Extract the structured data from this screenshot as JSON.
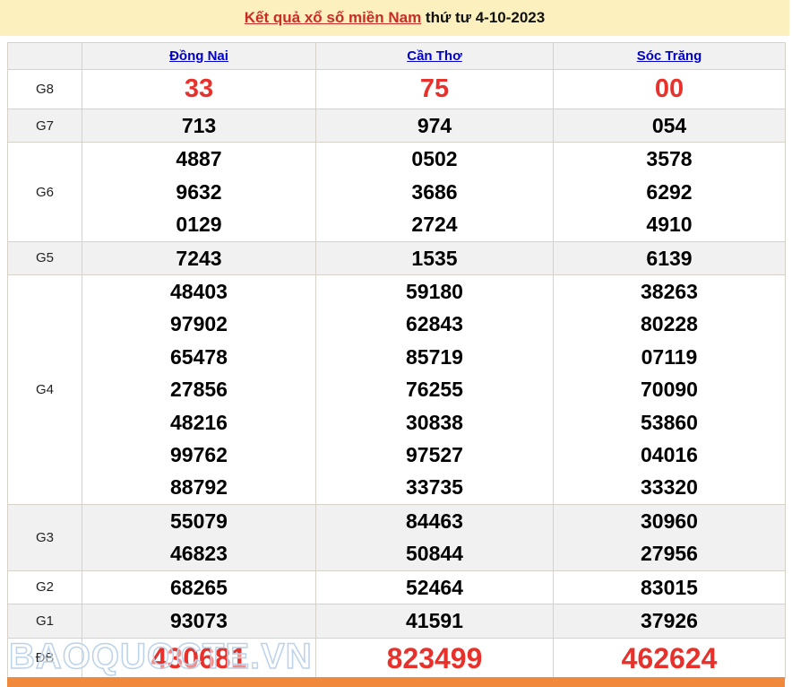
{
  "title": {
    "link_text": "Kết quả xổ số miền Nam",
    "date_text": " thứ tư 4-10-2023"
  },
  "table": {
    "columns": [
      {
        "key": "dong-nai",
        "label": "Đồng Nai"
      },
      {
        "key": "can-tho",
        "label": "Cần Thơ"
      },
      {
        "key": "soc-trang",
        "label": "Sóc Trăng"
      }
    ],
    "rows": [
      {
        "key": "g8",
        "label": "G8",
        "size": "large",
        "values": [
          [
            "33"
          ],
          [
            "75"
          ],
          [
            "00"
          ]
        ]
      },
      {
        "key": "g7",
        "label": "G7",
        "size": "normal",
        "values": [
          [
            "713"
          ],
          [
            "974"
          ],
          [
            "054"
          ]
        ]
      },
      {
        "key": "g6",
        "label": "G6",
        "size": "normal",
        "values": [
          [
            "4887",
            "9632",
            "0129"
          ],
          [
            "0502",
            "3686",
            "2724"
          ],
          [
            "3578",
            "6292",
            "4910"
          ]
        ]
      },
      {
        "key": "g5",
        "label": "G5",
        "size": "normal",
        "values": [
          [
            "7243"
          ],
          [
            "1535"
          ],
          [
            "6139"
          ]
        ]
      },
      {
        "key": "g4",
        "label": "G4",
        "size": "normal",
        "values": [
          [
            "48403",
            "97902",
            "65478",
            "27856",
            "48216",
            "99762",
            "88792"
          ],
          [
            "59180",
            "62843",
            "85719",
            "76255",
            "30838",
            "97527",
            "33735"
          ],
          [
            "38263",
            "80228",
            "07119",
            "70090",
            "53860",
            "04016",
            "33320"
          ]
        ]
      },
      {
        "key": "g3",
        "label": "G3",
        "size": "normal",
        "values": [
          [
            "55079",
            "46823"
          ],
          [
            "84463",
            "50844"
          ],
          [
            "30960",
            "27956"
          ]
        ]
      },
      {
        "key": "g2",
        "label": "G2",
        "size": "normal",
        "values": [
          [
            "68265"
          ],
          [
            "52464"
          ],
          [
            "83015"
          ]
        ]
      },
      {
        "key": "g1",
        "label": "G1",
        "size": "normal",
        "values": [
          [
            "93073"
          ],
          [
            "41591"
          ],
          [
            "37926"
          ]
        ]
      },
      {
        "key": "db",
        "label": "ĐB",
        "size": "xlarge",
        "values": [
          [
            "430681"
          ],
          [
            "823499"
          ],
          [
            "462624"
          ]
        ]
      }
    ]
  },
  "watermark": "BAOQUOCTE.VN",
  "colors": {
    "title_bar_bg": "#FBF0BE",
    "link_blue": "#0000C8",
    "title_red": "#CC2B24",
    "number_red": "#E8312B",
    "row_alt_bg": "#F1F1F1",
    "border": "#D6D2CA",
    "footer_orange": "#F0893B",
    "watermark_blue": "#BCD2E8"
  }
}
